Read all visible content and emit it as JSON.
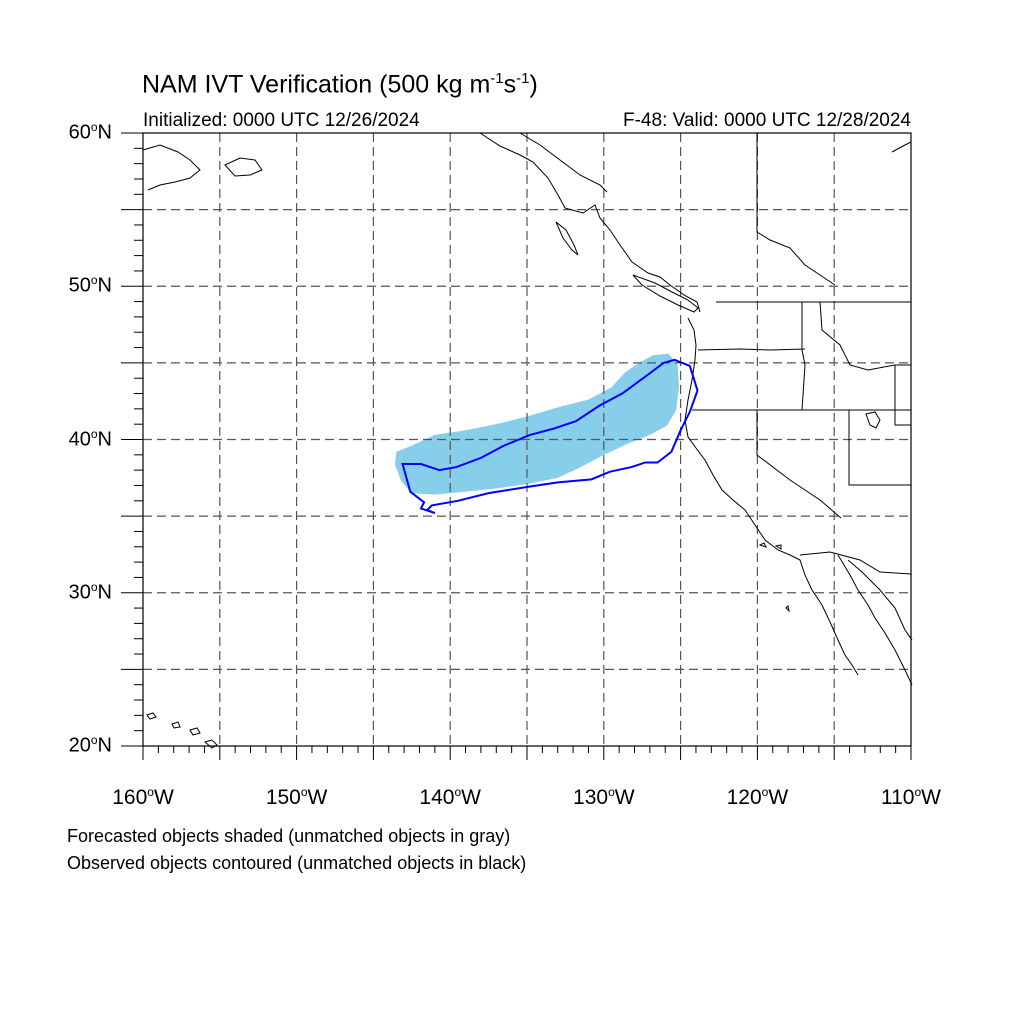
{
  "title": {
    "main": "NAM IVT Verification (500 kg m",
    "sup1": "-1",
    "mid": "s",
    "sup2": "-1",
    "end": ")"
  },
  "initialized": "Initialized: 0000 UTC 12/26/2024",
  "valid": "F-48: Valid: 0000 UTC 12/28/2024",
  "map": {
    "lon_range": [
      -160,
      -110
    ],
    "lat_range": [
      20,
      60
    ],
    "grid_lon_step": 5,
    "grid_lat_step": 5,
    "grid": "dashed",
    "lat_labels": [
      {
        "lat": 60,
        "num": "60",
        "deg": "o",
        "hemi": "N"
      },
      {
        "lat": 50,
        "num": "50",
        "deg": "o",
        "hemi": "N"
      },
      {
        "lat": 40,
        "num": "40",
        "deg": "o",
        "hemi": "N"
      },
      {
        "lat": 30,
        "num": "30",
        "deg": "o",
        "hemi": "N"
      },
      {
        "lat": 20,
        "num": "20",
        "deg": "o",
        "hemi": "N"
      }
    ],
    "lon_labels": [
      {
        "lon": -160,
        "num": "160",
        "deg": "o",
        "hemi": "W"
      },
      {
        "lon": -150,
        "num": "150",
        "deg": "o",
        "hemi": "W"
      },
      {
        "lon": -140,
        "num": "140",
        "deg": "o",
        "hemi": "W"
      },
      {
        "lon": -130,
        "num": "130",
        "deg": "o",
        "hemi": "W"
      },
      {
        "lon": -120,
        "num": "120",
        "deg": "o",
        "hemi": "W"
      },
      {
        "lon": -110,
        "num": "110",
        "deg": "o",
        "hemi": "W"
      }
    ],
    "forecast_color": "#87ceeb",
    "observed_color": "#0000ff",
    "forecast_object": [
      [
        -143.5,
        39.2
      ],
      [
        -142.5,
        39.6
      ],
      [
        -141.0,
        40.3
      ],
      [
        -139.0,
        40.6
      ],
      [
        -137.0,
        41.0
      ],
      [
        -135.0,
        41.5
      ],
      [
        -133.0,
        42.1
      ],
      [
        -131.0,
        42.6
      ],
      [
        -129.5,
        43.4
      ],
      [
        -128.6,
        44.4
      ],
      [
        -127.7,
        45.0
      ],
      [
        -126.8,
        45.5
      ],
      [
        -125.8,
        45.6
      ],
      [
        -125.2,
        44.9
      ],
      [
        -125.1,
        43.5
      ],
      [
        -125.3,
        41.9
      ],
      [
        -125.9,
        40.9
      ],
      [
        -127.0,
        40.3
      ],
      [
        -128.5,
        39.7
      ],
      [
        -130.0,
        39.0
      ],
      [
        -131.5,
        38.2
      ],
      [
        -133.0,
        37.5
      ],
      [
        -135.0,
        37.1
      ],
      [
        -137.0,
        36.8
      ],
      [
        -139.0,
        36.6
      ],
      [
        -141.0,
        36.4
      ],
      [
        -142.5,
        36.5
      ],
      [
        -143.2,
        37.3
      ],
      [
        -143.6,
        38.4
      ]
    ],
    "observed_object": [
      [
        -142.9,
        38.4
      ],
      [
        -141.9,
        38.4
      ],
      [
        -140.7,
        38.0
      ],
      [
        -139.6,
        38.2
      ],
      [
        -138.0,
        38.8
      ],
      [
        -136.5,
        39.6
      ],
      [
        -134.8,
        40.3
      ],
      [
        -133.3,
        40.7
      ],
      [
        -131.8,
        41.2
      ],
      [
        -130.3,
        42.2
      ],
      [
        -128.8,
        43.0
      ],
      [
        -127.3,
        44.1
      ],
      [
        -126.1,
        45.0
      ],
      [
        -125.4,
        45.2
      ],
      [
        -124.4,
        44.8
      ],
      [
        -123.9,
        43.2
      ],
      [
        -124.4,
        41.8
      ],
      [
        -125.0,
        40.6
      ],
      [
        -125.6,
        39.2
      ],
      [
        -126.5,
        38.5
      ],
      [
        -127.3,
        38.5
      ],
      [
        -128.2,
        38.2
      ],
      [
        -129.6,
        37.9
      ],
      [
        -130.8,
        37.4
      ],
      [
        -133.0,
        37.2
      ],
      [
        -135.0,
        36.9
      ],
      [
        -137.5,
        36.5
      ],
      [
        -139.5,
        36.0
      ],
      [
        -141.2,
        35.7
      ],
      [
        -141.5,
        35.4
      ],
      [
        -141.0,
        35.2
      ],
      [
        -141.9,
        35.5
      ],
      [
        -141.7,
        35.9
      ],
      [
        -142.6,
        36.6
      ],
      [
        -143.1,
        38.4
      ]
    ]
  },
  "notes": {
    "forecast": "Forecasted objects shaded (unmatched objects in gray)",
    "observed": "Observed objects contoured (unmatched objects in black)"
  }
}
